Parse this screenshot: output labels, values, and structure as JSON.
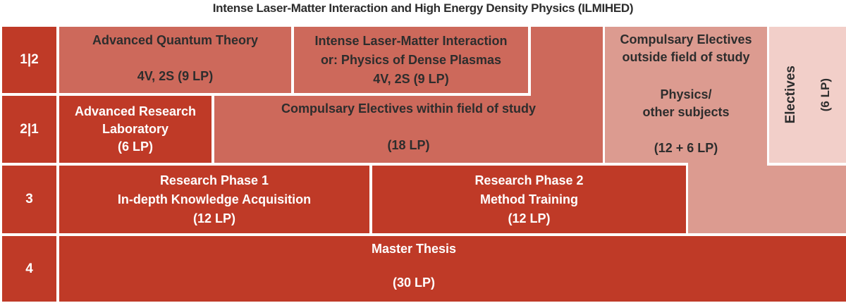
{
  "title": "Intense Laser-Matter Interaction and High Energy Density Physics (ILMIHED)",
  "colors": {
    "dark_red": "#bf3a27",
    "salmon": "#cd695b",
    "medium_pink": "#dc9b90",
    "light_pink": "#f2cfc9",
    "text_dark": "#2d2d2d",
    "text_light": "#ffffff"
  },
  "rows": {
    "semester_labels": [
      "1|2",
      "2|1",
      "3",
      "4"
    ]
  },
  "cells": {
    "advanced_quantum_theory": {
      "title": "Advanced Quantum Theory",
      "detail": "4V, 2S (9 LP)"
    },
    "intense_laser_matter": {
      "line1": "Intense Laser-Matter Interaction",
      "line2": "or: Physics of Dense Plasmas",
      "line3": "4V, 2S (9 LP)"
    },
    "advanced_research_laboratory": {
      "line1": "Advanced Research",
      "line2": "Laboratory",
      "line3": "(6 LP)"
    },
    "compulsary_electives_within": {
      "title": "Compulsary Electives within field of study",
      "detail": "(18 LP)"
    },
    "compulsary_electives_outside": {
      "line1": "Compulsary Electives",
      "line2": "outside field of study",
      "line3": "Physics/",
      "line4": "other subjects",
      "line5": "(12 + 6 LP)"
    },
    "electives": {
      "label": "Electives",
      "credits": "(6 LP)"
    },
    "research_phase_1": {
      "line1": "Research Phase 1",
      "line2": "In-depth Knowledge Acquisition",
      "line3": "(12 LP)"
    },
    "research_phase_2": {
      "line1": "Research Phase 2",
      "line2": "Method Training",
      "line3": "(12 LP)"
    },
    "master_thesis": {
      "title": "Master Thesis",
      "detail": "(30 LP)"
    }
  }
}
